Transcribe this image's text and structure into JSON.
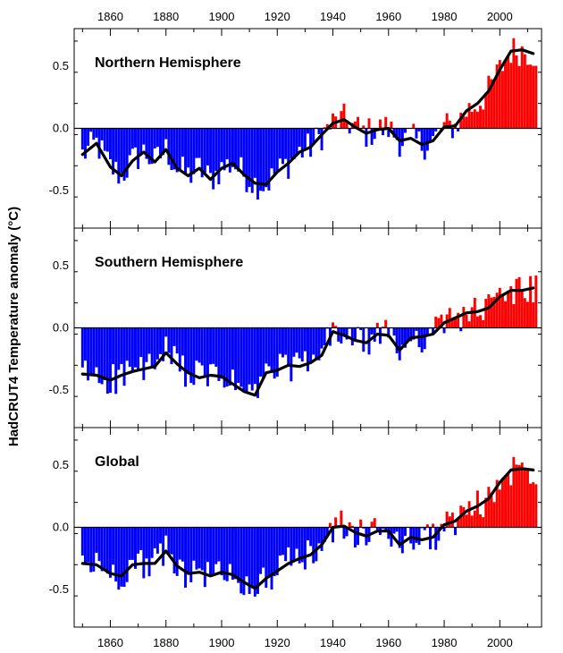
{
  "colors": {
    "positive": "#ff0000",
    "negative": "#0000ff",
    "smooth_line": "#000000",
    "frame": "#000000"
  },
  "chart_data": {
    "type": "bar",
    "ylabel": "HadCRUT4 Temperature anomaly (°C)",
    "xlim": [
      1847,
      2015
    ],
    "ylim": [
      -0.8,
      0.8
    ],
    "x_ticks": [
      1860,
      1880,
      1900,
      1920,
      1940,
      1960,
      1980,
      2000
    ],
    "y_ticks": [
      -0.5,
      0.0,
      0.5
    ],
    "y_tick_labels": [
      "-0.5",
      "0.0",
      "0.5"
    ],
    "x_minor_step": 10,
    "y_minor_step": 0.25,
    "grid": false,
    "panels": [
      {
        "title": "Northern Hemisphere",
        "smooth": {
          "x": [
            1850,
            1855,
            1860,
            1864,
            1868,
            1872,
            1876,
            1880,
            1884,
            1888,
            1892,
            1896,
            1900,
            1904,
            1908,
            1912,
            1916,
            1920,
            1924,
            1928,
            1932,
            1936,
            1940,
            1944,
            1948,
            1952,
            1956,
            1960,
            1964,
            1968,
            1972,
            1976,
            1980,
            1984,
            1988,
            1992,
            1996,
            2000,
            2004,
            2008,
            2012
          ],
          "y": [
            -0.21,
            -0.12,
            -0.31,
            -0.38,
            -0.26,
            -0.19,
            -0.27,
            -0.17,
            -0.32,
            -0.38,
            -0.32,
            -0.41,
            -0.32,
            -0.28,
            -0.37,
            -0.44,
            -0.45,
            -0.35,
            -0.28,
            -0.19,
            -0.15,
            -0.05,
            0.04,
            0.07,
            0.01,
            -0.04,
            -0.01,
            0.0,
            -0.1,
            -0.08,
            -0.13,
            -0.1,
            0.01,
            0.02,
            0.14,
            0.2,
            0.3,
            0.47,
            0.62,
            0.63,
            0.6
          ]
        }
      },
      {
        "title": "Southern Hemisphere",
        "smooth": {
          "x": [
            1850,
            1855,
            1860,
            1864,
            1868,
            1872,
            1876,
            1880,
            1884,
            1888,
            1892,
            1896,
            1900,
            1904,
            1908,
            1912,
            1916,
            1920,
            1924,
            1928,
            1932,
            1936,
            1940,
            1944,
            1948,
            1952,
            1956,
            1960,
            1964,
            1968,
            1972,
            1976,
            1980,
            1984,
            1988,
            1992,
            1996,
            2000,
            2004,
            2008,
            2012
          ],
          "y": [
            -0.37,
            -0.38,
            -0.42,
            -0.38,
            -0.35,
            -0.33,
            -0.31,
            -0.2,
            -0.29,
            -0.36,
            -0.4,
            -0.38,
            -0.39,
            -0.45,
            -0.51,
            -0.54,
            -0.36,
            -0.34,
            -0.3,
            -0.31,
            -0.28,
            -0.22,
            -0.03,
            -0.06,
            -0.1,
            -0.12,
            -0.05,
            -0.06,
            -0.18,
            -0.08,
            -0.07,
            -0.05,
            0.04,
            0.08,
            0.12,
            0.13,
            0.16,
            0.25,
            0.3,
            0.3,
            0.32
          ]
        }
      },
      {
        "title": "Global",
        "smooth": {
          "x": [
            1850,
            1855,
            1860,
            1864,
            1868,
            1872,
            1876,
            1880,
            1884,
            1888,
            1892,
            1896,
            1900,
            1904,
            1908,
            1912,
            1916,
            1920,
            1924,
            1928,
            1932,
            1936,
            1940,
            1944,
            1948,
            1952,
            1956,
            1960,
            1964,
            1968,
            1972,
            1976,
            1980,
            1984,
            1988,
            1992,
            1996,
            2000,
            2004,
            2008,
            2012
          ],
          "y": [
            -0.29,
            -0.3,
            -0.37,
            -0.39,
            -0.3,
            -0.29,
            -0.29,
            -0.19,
            -0.31,
            -0.37,
            -0.36,
            -0.39,
            -0.36,
            -0.38,
            -0.44,
            -0.49,
            -0.41,
            -0.35,
            -0.29,
            -0.25,
            -0.22,
            -0.14,
            0.0,
            0.01,
            -0.04,
            -0.07,
            -0.03,
            -0.03,
            -0.14,
            -0.08,
            -0.1,
            -0.08,
            0.02,
            0.05,
            0.13,
            0.17,
            0.23,
            0.36,
            0.46,
            0.47,
            0.46
          ]
        }
      }
    ]
  }
}
